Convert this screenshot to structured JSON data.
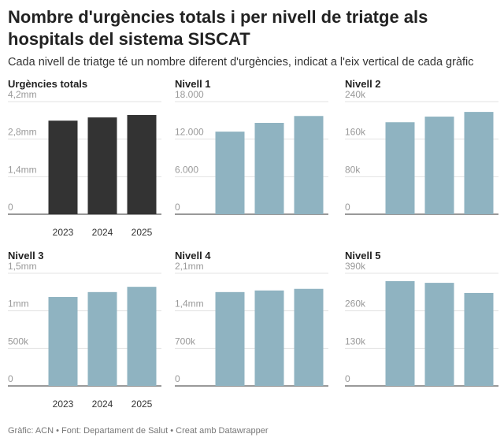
{
  "title": "Nombre d'urgències totals i per nivell de triatge als hospitals del sistema SISCAT",
  "subtitle": "Cada nivell de triatge té un nombre diferent d'urgències, indicat a l'eix vertical de cada gràfic",
  "source": "Gràfic: ACN • Font: Departament de Salut • Creat amb Datawrapper",
  "chart_data": [
    {
      "type": "bar",
      "title": "Urgències totals",
      "categories": [
        "2023",
        "2024",
        "2025"
      ],
      "values": [
        3490000,
        3610000,
        3700000
      ],
      "color": "#333333",
      "ylim": [
        0,
        4200000
      ],
      "yticks": [
        0,
        {
          "value": 1400000,
          "label": "1,4mm"
        },
        {
          "value": 2800000,
          "label": "2,8mm"
        },
        {
          "value": 4200000,
          "label": "4,2mm"
        }
      ],
      "grid": true
    },
    {
      "type": "bar",
      "title": "Nivell 1",
      "categories": [
        null,
        null,
        null
      ],
      "values": [
        13200,
        14600,
        15700
      ],
      "color": "#8fb3c1",
      "ylim": [
        0,
        18000
      ],
      "yticks": [
        0,
        {
          "value": 6000,
          "label": "6.000"
        },
        {
          "value": 12000,
          "label": "12.000"
        },
        {
          "value": 18000,
          "label": "18.000"
        }
      ],
      "grid": true
    },
    {
      "type": "bar",
      "title": "Nivell 2",
      "categories": [
        null,
        null,
        null
      ],
      "values": [
        196000,
        208000,
        218000
      ],
      "color": "#8fb3c1",
      "ylim": [
        0,
        240000
      ],
      "yticks": [
        0,
        {
          "value": 80000,
          "label": "80k"
        },
        {
          "value": 160000,
          "label": "160k"
        },
        {
          "value": 240000,
          "label": "240k"
        }
      ],
      "grid": true
    },
    {
      "type": "bar",
      "title": "Nivell 3",
      "categories": [
        "2023",
        "2024",
        "2025"
      ],
      "values": [
        1185000,
        1250000,
        1320000
      ],
      "color": "#8fb3c1",
      "ylim": [
        0,
        1500000
      ],
      "yticks": [
        0,
        {
          "value": 500000,
          "label": "500k"
        },
        {
          "value": 1000000,
          "label": "1mm"
        },
        {
          "value": 1500000,
          "label": "1,5mm"
        }
      ],
      "grid": true
    },
    {
      "type": "bar",
      "title": "Nivell 4",
      "categories": [
        null,
        null,
        null
      ],
      "values": [
        1750000,
        1780000,
        1810000
      ],
      "color": "#8fb3c1",
      "ylim": [
        0,
        2100000
      ],
      "yticks": [
        0,
        {
          "value": 700000,
          "label": "700k"
        },
        {
          "value": 1400000,
          "label": "1,4mm"
        },
        {
          "value": 2100000,
          "label": "2,1mm"
        }
      ],
      "grid": true
    },
    {
      "type": "bar",
      "title": "Nivell 5",
      "categories": [
        null,
        null,
        null
      ],
      "values": [
        363000,
        357000,
        322000
      ],
      "color": "#8fb3c1",
      "ylim": [
        0,
        390000
      ],
      "yticks": [
        0,
        {
          "value": 130000,
          "label": "130k"
        },
        {
          "value": 260000,
          "label": "260k"
        },
        {
          "value": 390000,
          "label": "390k"
        }
      ],
      "grid": true
    }
  ]
}
